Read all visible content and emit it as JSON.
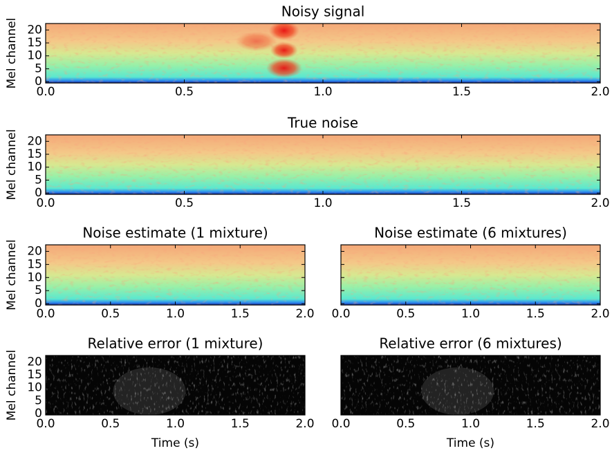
{
  "chart_data": [
    {
      "type": "heatmap",
      "title": "Noisy signal",
      "ylabel": "Mel channel",
      "colormap": "jet",
      "highlight": true,
      "xlim": [
        0,
        2
      ],
      "xticks": [
        {
          "value": 0,
          "label": "0.0"
        },
        {
          "value": 0.5,
          "label": "0.5"
        },
        {
          "value": 1,
          "label": "1.0"
        },
        {
          "value": 1.5,
          "label": "1.5"
        },
        {
          "value": 2,
          "label": "2.0"
        }
      ],
      "ylim": [
        -0.5,
        22.5
      ],
      "yticks": [
        0,
        5,
        10,
        15,
        20
      ]
    },
    {
      "type": "heatmap",
      "title": "True noise",
      "ylabel": "Mel channel",
      "colormap": "jet",
      "highlight": false,
      "xlim": [
        0,
        2
      ],
      "xticks": [
        {
          "value": 0,
          "label": "0.0"
        },
        {
          "value": 0.5,
          "label": "0.5"
        },
        {
          "value": 1,
          "label": "1.0"
        },
        {
          "value": 1.5,
          "label": "1.5"
        },
        {
          "value": 2,
          "label": "2.0"
        }
      ],
      "ylim": [
        -0.5,
        22.5
      ],
      "yticks": [
        0,
        5,
        10,
        15,
        20
      ]
    },
    {
      "type": "heatmap",
      "title": "Noise estimate (1 mixture)",
      "ylabel": "Mel channel",
      "colormap": "jet",
      "highlight": false,
      "xlim": [
        0,
        2
      ],
      "xticks": [
        {
          "value": 0,
          "label": "0.0"
        },
        {
          "value": 0.5,
          "label": "0.5"
        },
        {
          "value": 1,
          "label": "1.0"
        },
        {
          "value": 1.5,
          "label": "1.5"
        },
        {
          "value": 2,
          "label": "2.0"
        }
      ],
      "ylim": [
        -0.5,
        22.5
      ],
      "yticks": [
        0,
        5,
        10,
        15,
        20
      ]
    },
    {
      "type": "heatmap",
      "title": "Noise estimate (6 mixtures)",
      "colormap": "jet",
      "highlight": false,
      "xlim": [
        0,
        2
      ],
      "xticks": [
        {
          "value": 0,
          "label": "0.0"
        },
        {
          "value": 0.5,
          "label": "0.5"
        },
        {
          "value": 1,
          "label": "1.0"
        },
        {
          "value": 1.5,
          "label": "1.5"
        },
        {
          "value": 2,
          "label": "2.0"
        }
      ],
      "ylim": [
        -0.5,
        22.5
      ],
      "yticks": [
        0,
        5,
        10,
        15,
        20
      ],
      "ytick_labels": false
    },
    {
      "type": "heatmap",
      "title": "Relative error (1 mixture)",
      "ylabel": "Mel channel",
      "xlabel": "Time (s)",
      "colormap": "gray",
      "xlim": [
        0,
        2
      ],
      "xticks": [
        {
          "value": 0,
          "label": "0.0"
        },
        {
          "value": 0.5,
          "label": "0.5"
        },
        {
          "value": 1,
          "label": "1.0"
        },
        {
          "value": 1.5,
          "label": "1.5"
        },
        {
          "value": 2,
          "label": "2.0"
        }
      ],
      "ylim": [
        -0.5,
        22.5
      ],
      "yticks": [
        0,
        5,
        10,
        15,
        20
      ]
    },
    {
      "type": "heatmap",
      "title": "Relative error (6 mixtures)",
      "xlabel": "Time (s)",
      "colormap": "gray",
      "xlim": [
        0,
        2
      ],
      "xticks": [
        {
          "value": 0,
          "label": "0.0"
        },
        {
          "value": 0.5,
          "label": "0.5"
        },
        {
          "value": 1,
          "label": "1.0"
        },
        {
          "value": 1.5,
          "label": "1.5"
        },
        {
          "value": 2,
          "label": "2.0"
        }
      ],
      "ylim": [
        -0.5,
        22.5
      ],
      "yticks": [
        0,
        5,
        10,
        15,
        20
      ],
      "ytick_labels": false
    }
  ]
}
